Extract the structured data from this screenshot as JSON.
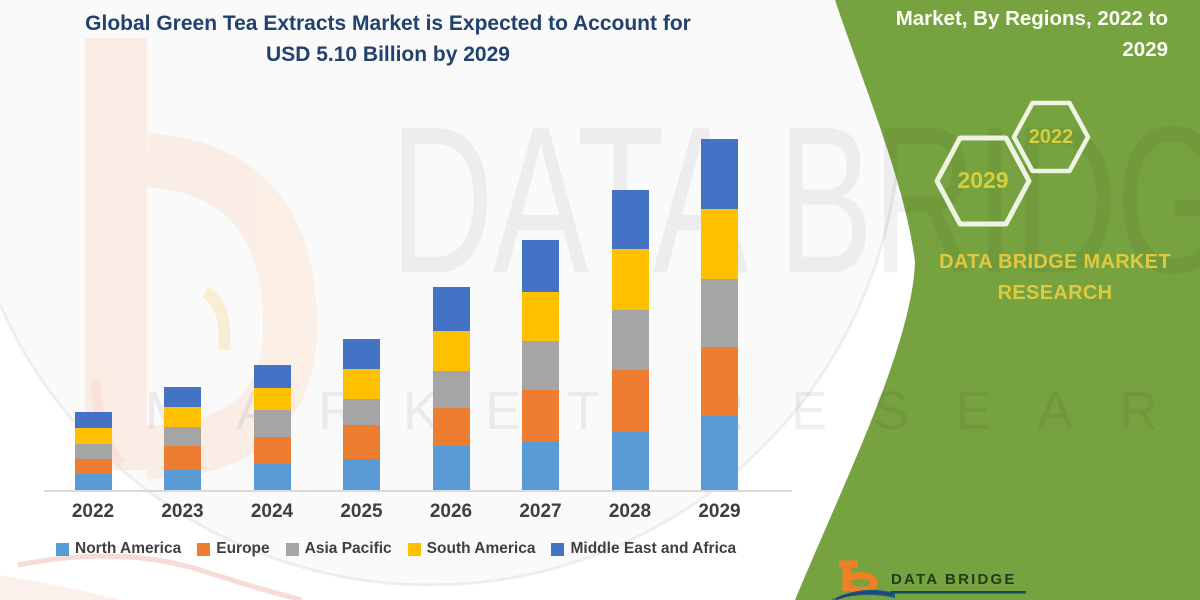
{
  "header": {
    "title_line1": "Global Green Tea Extracts Market is Expected to Account for",
    "title_line2": "USD 5.10 Billion by 2029",
    "title_color": "#21416E"
  },
  "banner": {
    "heading_line1": "Market, By Regions, 2022 to",
    "heading_line2": "2029",
    "green_color": "#77A240",
    "hexagon_outline_color": "#EFF4E2",
    "hexagon_year_color": "#D6CE3B",
    "hexagons": [
      {
        "year": "2022"
      },
      {
        "year": "2029"
      }
    ],
    "brand_line1": "DATA BRIDGE MARKET",
    "brand_line2": "RESEARCH",
    "brand_text_color": "#DFC93F"
  },
  "watermark": {
    "line1": "DATA BRIDGE",
    "line2": "MARKET RESEARCH",
    "top_edge_text": "MARKET RESEARCH"
  },
  "footer_logo": {
    "brand": "DATA BRIDGE",
    "b_color": "#F18024",
    "swoosh_color": "#0E6B76"
  },
  "chart_data": {
    "type": "bar",
    "stacked": true,
    "unit": "USD Billion",
    "values_are_estimates": true,
    "categories": [
      "2022",
      "2023",
      "2024",
      "2025",
      "2026",
      "2027",
      "2028",
      "2029"
    ],
    "series": [
      {
        "name": "North America",
        "color": "#5B9BD5",
        "values": [
          0.23,
          0.29,
          0.38,
          0.45,
          0.64,
          0.7,
          0.84,
          1.07
        ]
      },
      {
        "name": "Europe",
        "color": "#ED7D31",
        "values": [
          0.22,
          0.35,
          0.39,
          0.5,
          0.55,
          0.75,
          0.9,
          1.01
        ]
      },
      {
        "name": "Asia Pacific",
        "color": "#A5A5A5",
        "values": [
          0.22,
          0.28,
          0.39,
          0.38,
          0.54,
          0.71,
          0.87,
          0.99
        ]
      },
      {
        "name": "South America",
        "color": "#FFC000",
        "values": [
          0.24,
          0.28,
          0.32,
          0.43,
          0.58,
          0.72,
          0.9,
          1.02
        ]
      },
      {
        "name": "Middle East and Africa",
        "color": "#4472C4",
        "values": [
          0.23,
          0.3,
          0.34,
          0.44,
          0.64,
          0.75,
          0.85,
          1.01
        ]
      }
    ],
    "stack_order_bottom_to_top": [
      "North America",
      "Europe",
      "Asia Pacific",
      "South America",
      "Middle East and Africa"
    ],
    "totals_estimated": [
      1.14,
      1.5,
      1.82,
      2.2,
      2.95,
      3.63,
      4.36,
      5.1
    ],
    "highlight_value": "USD 5.10 Billion by 2029",
    "xlabel": "",
    "ylabel": "",
    "axis": {
      "y_axis_visible": false,
      "gridlines": false,
      "baseline_color": "#D9D9D9"
    },
    "legend_position": "bottom"
  }
}
